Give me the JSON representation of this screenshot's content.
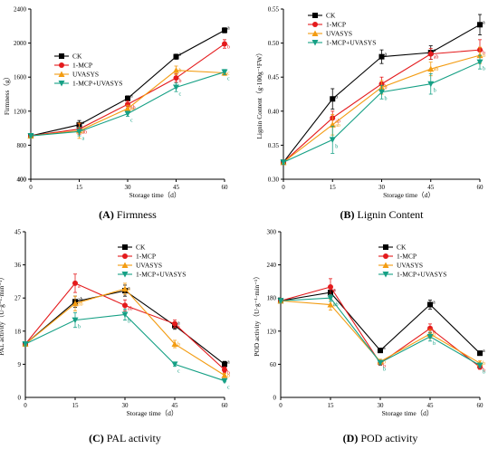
{
  "colors": {
    "CK": "#000000",
    "1-MCP": "#e41a1c",
    "UVASYS": "#f39c12",
    "1-MCP+UVASYS": "#16a085"
  },
  "chart_data": [
    {
      "type": "line",
      "panel_label": "(A)",
      "caption": "Firmness",
      "x": [
        0,
        15,
        30,
        45,
        60
      ],
      "xlabel": "Storage time（d）",
      "ylabel": "Firmness（g）",
      "xlim": [
        0,
        60
      ],
      "ylim": [
        400,
        2400
      ],
      "yticks": [
        400,
        800,
        1200,
        1600,
        2000,
        2400
      ],
      "legend": "top-left",
      "series": [
        {
          "name": "CK",
          "marker": "square",
          "values": [
            910,
            1040,
            1350,
            1840,
            2150
          ],
          "errors": [
            20,
            50,
            30,
            30,
            30
          ],
          "labels": [
            "",
            "a",
            "a",
            "a",
            "a"
          ]
        },
        {
          "name": "1-MCP",
          "marker": "circle",
          "values": [
            910,
            990,
            1280,
            1590,
            1990
          ],
          "errors": [
            20,
            60,
            40,
            50,
            50
          ],
          "labels": [
            "",
            "ab",
            "ab",
            "b",
            "b"
          ]
        },
        {
          "name": "UVASYS",
          "marker": "triangle-up",
          "values": [
            910,
            970,
            1230,
            1680,
            1650
          ],
          "errors": [
            20,
            90,
            40,
            50,
            30
          ],
          "labels": [
            "",
            "a",
            "bc",
            "b",
            "c"
          ]
        },
        {
          "name": "1-MCP+UVASYS",
          "marker": "triangle-down",
          "values": [
            910,
            960,
            1170,
            1480,
            1660
          ],
          "errors": [
            20,
            50,
            30,
            50,
            30
          ],
          "labels": [
            "",
            "a",
            "c",
            "c",
            "c"
          ]
        }
      ]
    },
    {
      "type": "line",
      "panel_label": "(B)",
      "caption": "Lignin Content",
      "x": [
        0,
        15,
        30,
        45,
        60
      ],
      "xlabel": "Storage time（d）",
      "ylabel": "Lignin Content（g·100g⁻¹FW）",
      "xlim": [
        0,
        60
      ],
      "ylim": [
        0.3,
        0.55
      ],
      "yticks": [
        0.3,
        0.35,
        0.4,
        0.45,
        0.5,
        0.55
      ],
      "legend": "top-left",
      "series": [
        {
          "name": "CK",
          "marker": "square",
          "values": [
            0.325,
            0.418,
            0.48,
            0.486,
            0.527
          ],
          "errors": [
            0.003,
            0.015,
            0.01,
            0.01,
            0.015
          ],
          "labels": [
            "",
            "a",
            "a",
            "a",
            "a"
          ]
        },
        {
          "name": "1-MCP",
          "marker": "circle",
          "values": [
            0.325,
            0.39,
            0.44,
            0.484,
            0.49
          ],
          "errors": [
            0.003,
            0.01,
            0.01,
            0.008,
            0.015
          ],
          "labels": [
            "",
            "ab",
            "b",
            "ab",
            "b"
          ]
        },
        {
          "name": "UVASYS",
          "marker": "triangle-up",
          "values": [
            0.325,
            0.38,
            0.435,
            0.462,
            0.482
          ],
          "errors": [
            0.003,
            0.015,
            0.01,
            0.01,
            0.012
          ],
          "labels": [
            "",
            "ab",
            "b",
            "ab",
            "b"
          ]
        },
        {
          "name": "1-MCP+UVASYS",
          "marker": "triangle-down",
          "values": [
            0.325,
            0.358,
            0.428,
            0.44,
            0.472
          ],
          "errors": [
            0.003,
            0.02,
            0.01,
            0.015,
            0.01
          ],
          "labels": [
            "",
            "b",
            "b",
            "b",
            "b"
          ]
        }
      ]
    },
    {
      "type": "line",
      "panel_label": "(C)",
      "caption": "PAL activity",
      "x": [
        0,
        15,
        30,
        45,
        60
      ],
      "xlabel": "Storage time（d）",
      "ylabel": "PAL activity（U·g⁻¹·min⁻¹）",
      "xlim": [
        0,
        60
      ],
      "ylim": [
        0,
        45
      ],
      "yticks": [
        9,
        18,
        27,
        36,
        45
      ],
      "legend": "top-right",
      "series": [
        {
          "name": "CK",
          "marker": "square",
          "values": [
            14.5,
            26,
            29,
            19.5,
            9
          ],
          "errors": [
            0.5,
            1.5,
            1.5,
            1.0,
            0.8
          ],
          "labels": [
            "",
            "ab",
            "a",
            "a",
            "a"
          ]
        },
        {
          "name": "1-MCP",
          "marker": "circle",
          "values": [
            14.5,
            31,
            25,
            20,
            7.5
          ],
          "errors": [
            0.5,
            2.5,
            1.5,
            1.0,
            0.8
          ],
          "labels": [
            "",
            "a",
            "ab",
            "a",
            "b"
          ]
        },
        {
          "name": "UVASYS",
          "marker": "triangle-up",
          "values": [
            14.5,
            25.5,
            29.5,
            14.5,
            6
          ],
          "errors": [
            0.5,
            2.0,
            1.5,
            1.0,
            0.5
          ],
          "labels": [
            "",
            "ab",
            "a",
            "b",
            "b"
          ]
        },
        {
          "name": "1-MCP+UVASYS",
          "marker": "triangle-down",
          "values": [
            14.5,
            21,
            22.5,
            9,
            4.5
          ],
          "errors": [
            0.5,
            2.0,
            1.5,
            0.5,
            0.3
          ],
          "labels": [
            "",
            "b",
            "b",
            "c",
            "c"
          ]
        }
      ]
    },
    {
      "type": "line",
      "panel_label": "(D)",
      "caption": "POD activity",
      "x": [
        0,
        15,
        30,
        45,
        60
      ],
      "xlabel": "Storage time（d）",
      "ylabel": "POD activity（U·g⁻¹·min⁻¹）",
      "xlim": [
        0,
        60
      ],
      "ylim": [
        0,
        300
      ],
      "yticks": [
        60,
        120,
        180,
        240,
        300
      ],
      "legend": "top-right",
      "series": [
        {
          "name": "CK",
          "marker": "square",
          "values": [
            175,
            190,
            85,
            168,
            80
          ],
          "errors": [
            3,
            8,
            4,
            8,
            4
          ],
          "labels": [
            "",
            "a",
            "a",
            "a",
            "a"
          ]
        },
        {
          "name": "1-MCP",
          "marker": "circle",
          "values": [
            175,
            200,
            62,
            125,
            55
          ],
          "errors": [
            3,
            15,
            4,
            8,
            4
          ],
          "labels": [
            "",
            "a",
            "b",
            "b",
            "b"
          ]
        },
        {
          "name": "UVASYS",
          "marker": "triangle-up",
          "values": [
            175,
            168,
            65,
            115,
            62
          ],
          "errors": [
            3,
            10,
            4,
            8,
            4
          ],
          "labels": [
            "",
            "b",
            "b",
            "b",
            "b"
          ]
        },
        {
          "name": "1-MCP+UVASYS",
          "marker": "triangle-down",
          "values": [
            175,
            180,
            63,
            110,
            58
          ],
          "errors": [
            3,
            6,
            4,
            8,
            4
          ],
          "labels": [
            "",
            "ab",
            "b",
            "b",
            "b"
          ]
        }
      ]
    }
  ]
}
